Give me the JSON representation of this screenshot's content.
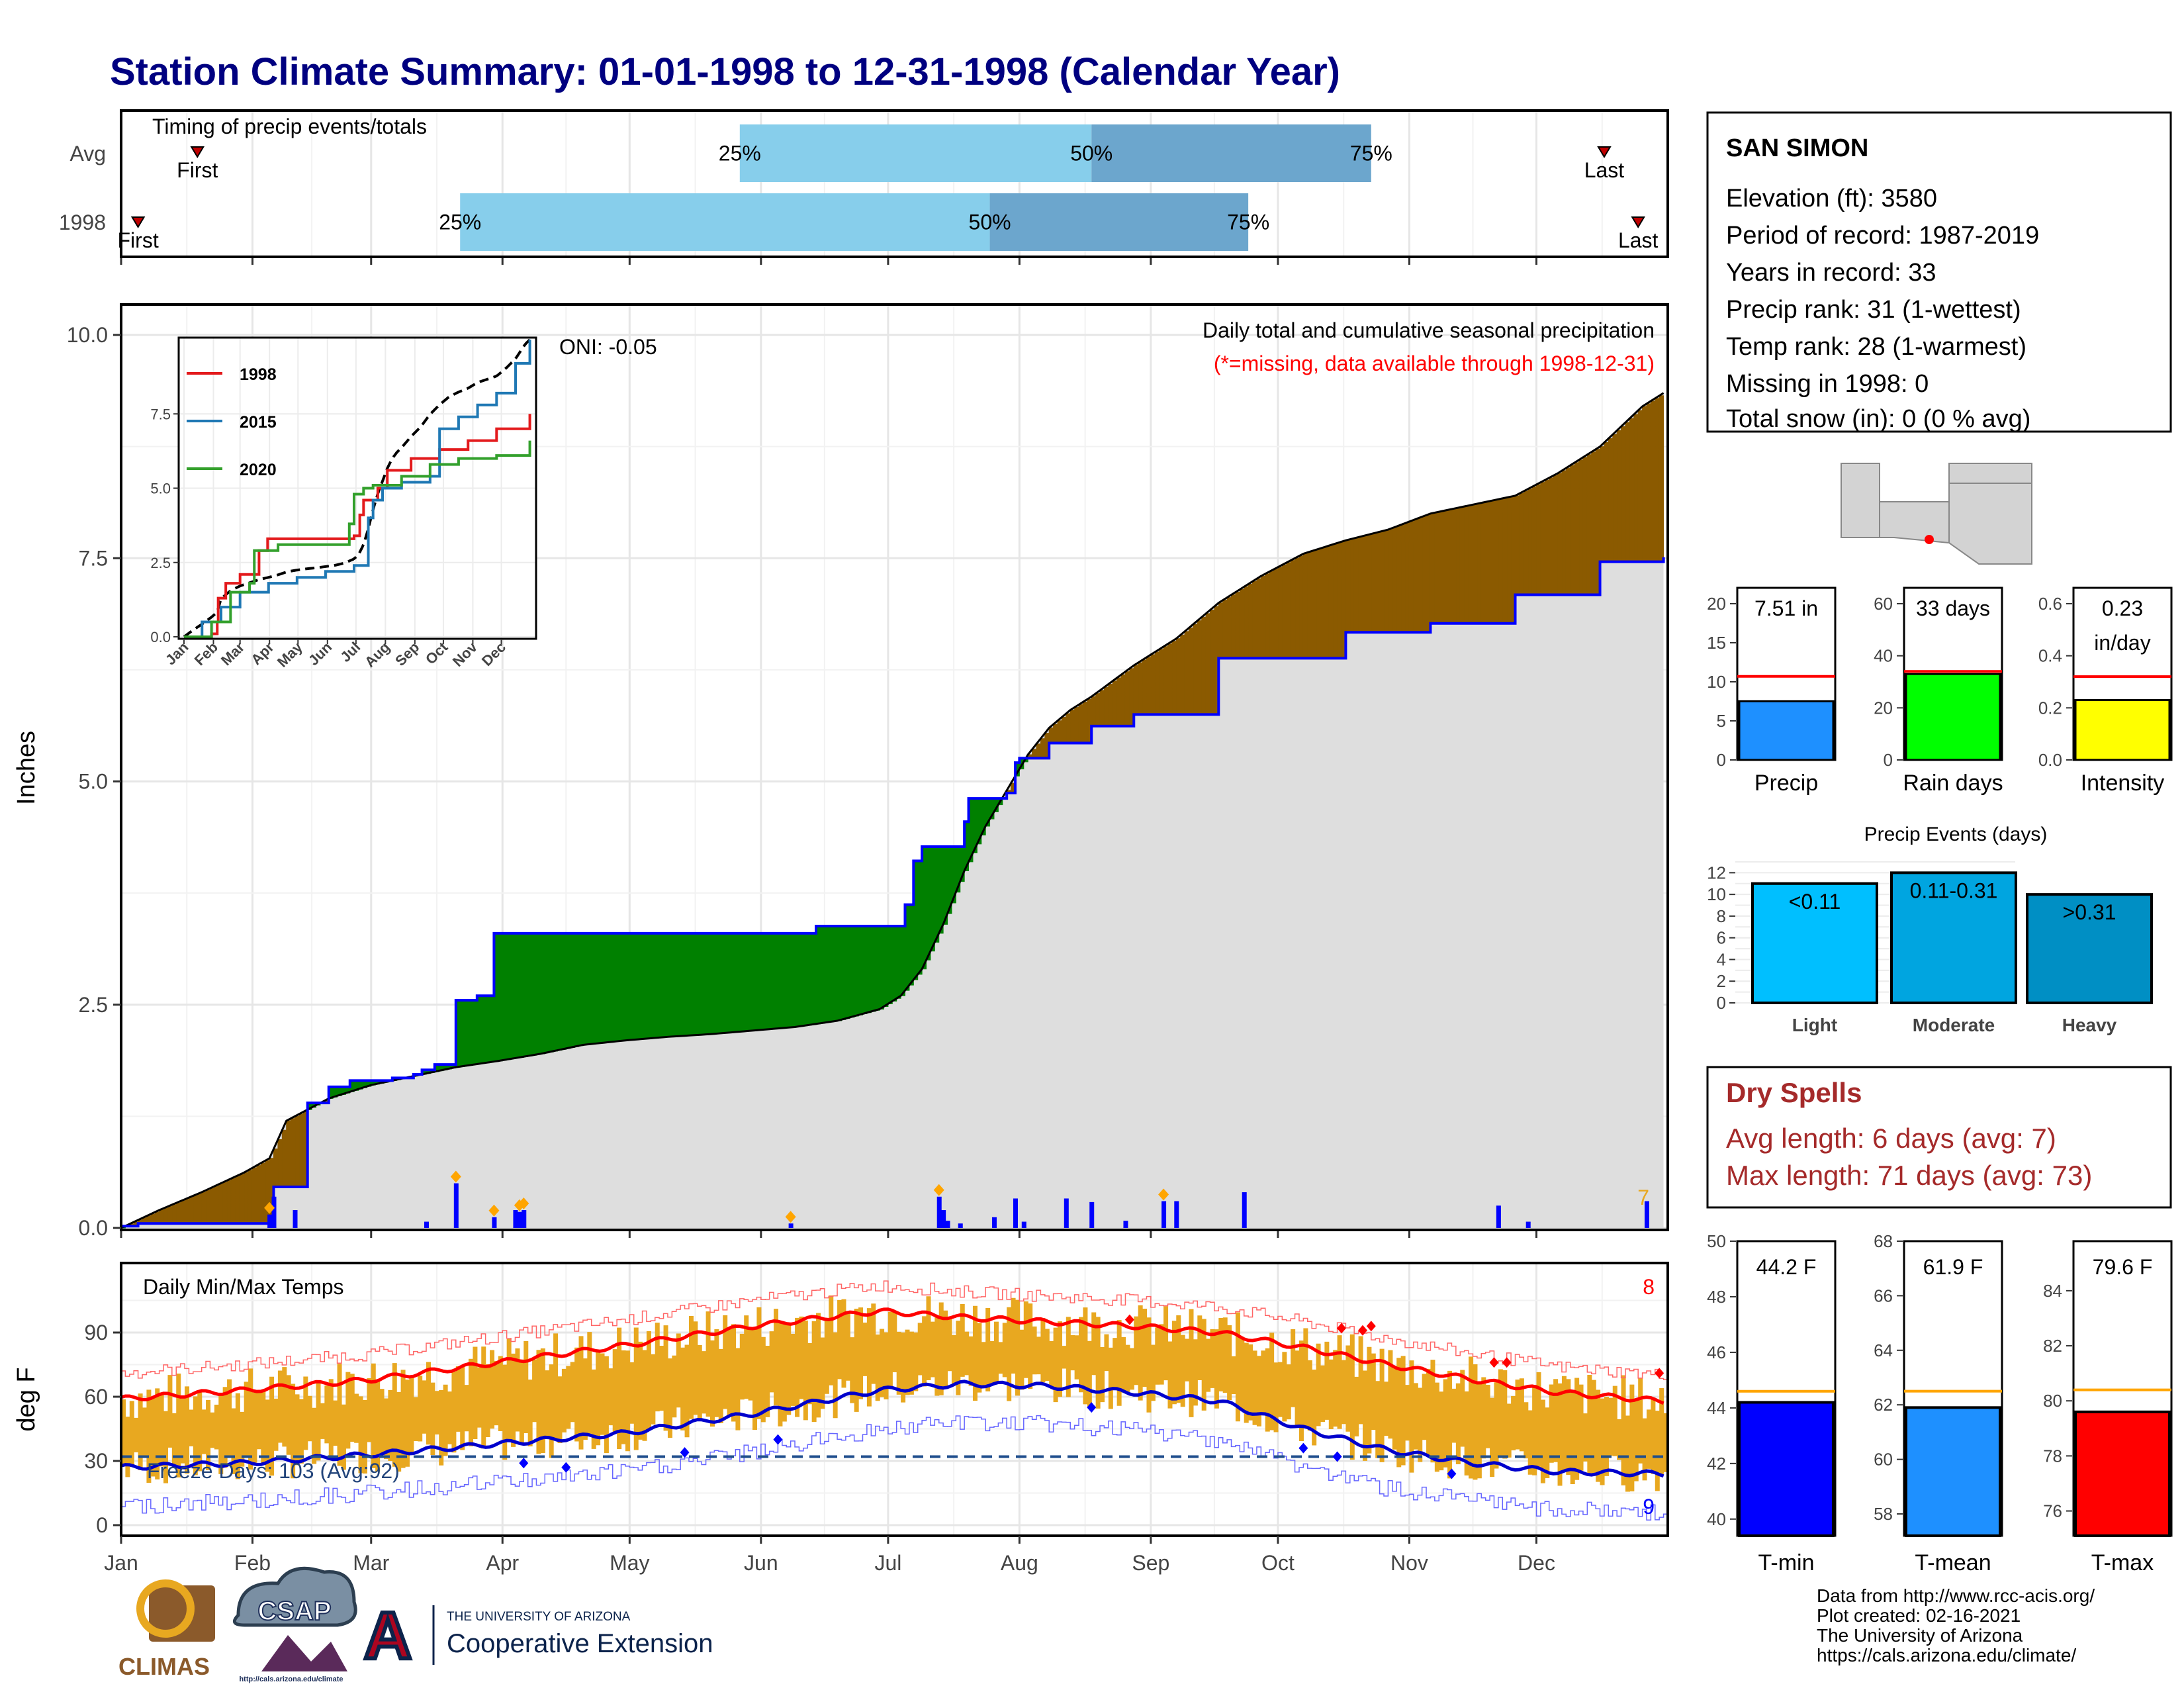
{
  "title": "Station Climate Summary: 01-01-1998 to 12-31-1998 (Calendar Year)",
  "months": [
    "Jan",
    "Feb",
    "Mar",
    "Apr",
    "May",
    "Jun",
    "Jul",
    "Aug",
    "Sep",
    "Oct",
    "Nov",
    "Dec"
  ],
  "timing": {
    "title": "Timing of precip events/totals",
    "avg_label": "Avg",
    "year_label": "1998",
    "first_label": "First",
    "last_label": "Last",
    "pct_labels": [
      "25%",
      "50%",
      "75%"
    ]
  },
  "precip_panel": {
    "ylabel": "Inches",
    "annotation": "Daily total and cumulative seasonal precipitation",
    "missing_note": "(*=missing, data available through 1998-12-31)",
    "oni": "ONI: -0.05",
    "corner_count": "7",
    "inset_legend": [
      "1998",
      "2015",
      "2020"
    ]
  },
  "temp_panel": {
    "ylabel": "deg F",
    "title": "Daily Min/Max Temps",
    "freeze": "Freeze Days: 103 (Avg:92)",
    "top_count": "8",
    "bottom_count": "9"
  },
  "station": {
    "name": "SAN SIMON",
    "lines": [
      "Elevation (ft): 3580",
      "Period of record: 1987-2019",
      "Years in record: 33",
      "Precip rank: 31 (1-wettest)",
      "Temp rank: 28 (1-warmest)",
      "Missing in 1998: 0",
      "Total snow (in): 0 (0 % avg)"
    ]
  },
  "mini_bars": {
    "precip": {
      "label": "Precip",
      "value_text": "7.51 in",
      "value": 7.51,
      "avg": 10.7,
      "ymax": 20,
      "ticks": [
        0,
        5,
        10,
        15,
        20
      ],
      "color": "#1e90ff"
    },
    "rain_days": {
      "label": "Rain days",
      "value_text": "33 days",
      "value": 33,
      "avg": 34,
      "ymax": 60,
      "ticks": [
        0,
        20,
        40,
        60
      ],
      "color": "#00ff00"
    },
    "intensity": {
      "label": "Intensity",
      "value_text": "0.23\nin/day",
      "value": 0.23,
      "avg": 0.32,
      "ymax": 0.6,
      "ticks": [
        0.0,
        0.2,
        0.4,
        0.6
      ],
      "color": "#ffff00"
    }
  },
  "precip_events": {
    "title": "Precip Events (days)",
    "categories": [
      "Light",
      "Moderate",
      "Heavy"
    ],
    "bin_labels": [
      "<0.11",
      "0.11-0.31",
      ">0.31"
    ],
    "values": [
      11,
      12,
      10
    ],
    "ticks": [
      0,
      2,
      4,
      6,
      8,
      10,
      12
    ],
    "colors": [
      "#00bfff",
      "#00a5e0",
      "#008fc4"
    ]
  },
  "dry_spells": {
    "title": "Dry Spells",
    "avg_line": "Avg length: 6 days (avg: 7)",
    "max_line": "Max length: 71 days (avg: 73)"
  },
  "temp_bars": {
    "tmin": {
      "label": "T-min",
      "value_text": "44.2 F",
      "value": 44.2,
      "avg": 44.6,
      "ylim": [
        39.4,
        50
      ],
      "ticks": [
        40,
        42,
        44,
        46,
        48,
        50
      ],
      "color": "#0000ff"
    },
    "tmean": {
      "label": "T-mean",
      "value_text": "61.9 F",
      "value": 61.9,
      "avg": 62.5,
      "ylim": [
        57.2,
        68
      ],
      "ticks": [
        58,
        60,
        62,
        64,
        66,
        68
      ],
      "color": "#1e90ff"
    },
    "tmax": {
      "label": "T-max",
      "value_text": "79.6 F",
      "value": 79.6,
      "avg": 80.4,
      "ylim": [
        75.1,
        85.8
      ],
      "ticks": [
        76,
        78,
        80,
        82,
        84
      ],
      "color": "#ff0000"
    }
  },
  "footer": {
    "credits": [
      "Data from http://www.rcc-acis.org/",
      "Plot created: 02-16-2021",
      "The University of Arizona",
      "https://cals.arizona.edu/climate/"
    ],
    "climas": "CLIMAS",
    "csap": "CSAP",
    "csap_url": "http://cals.arizona.edu/climate",
    "ua_line1": "THE UNIVERSITY OF ARIZONA",
    "ua_line2": "Cooperative Extension",
    "ua_letter": "A"
  },
  "colors": {
    "title": "#000080",
    "above_normal": "#8b5a00",
    "below_normal": "#008000",
    "normal_fill": "#dedede",
    "daily_bar": "#0000ff",
    "temp_range": "#e8a820",
    "dry_spell_text": "#a52a2a",
    "timing_light": "#87ceeb",
    "timing_dark": "#6ca6cd"
  },
  "chart_data": [
    {
      "type": "bar",
      "name": "timing",
      "categories": [
        "Avg",
        "1998"
      ],
      "series": [
        {
          "name": "25%",
          "x_day": [
            147,
            81
          ]
        },
        {
          "name": "50%",
          "x_day": [
            230,
            206
          ]
        },
        {
          "name": "75%",
          "x_day": [
            296,
            267
          ]
        }
      ],
      "first_day": [
        19,
        5
      ],
      "last_day": [
        351,
        359
      ]
    },
    {
      "type": "area",
      "name": "cumulative precipitation",
      "ylabel": "Inches",
      "ylim": [
        0,
        10
      ],
      "yticks": [
        0,
        2.5,
        5.0,
        7.5,
        10.0
      ],
      "x_unit": "day of year",
      "series": [
        {
          "name": "1998 cumulative",
          "x": [
            1,
            5,
            10,
            15,
            20,
            25,
            30,
            36,
            37,
            45,
            50,
            55,
            60,
            65,
            70,
            72,
            73,
            75,
            80,
            85,
            88,
            89,
            95,
            100,
            105,
            110,
            115,
            120,
            125,
            130,
            135,
            140,
            145,
            150,
            155,
            160,
            165,
            170,
            180,
            185,
            186,
            187,
            188,
            190,
            195,
            200,
            201,
            205,
            210,
            212,
            213,
            215,
            220,
            230,
            240,
            250,
            260,
            270,
            280,
            290,
            300,
            310,
            320,
            330,
            340,
            350,
            358,
            365
          ],
          "y": [
            0.02,
            0.05,
            0.05,
            0.05,
            0.05,
            0.05,
            0.05,
            0.08,
            0.46,
            1.4,
            1.58,
            1.65,
            1.65,
            1.68,
            1.72,
            1.77,
            1.77,
            1.83,
            2.55,
            2.6,
            2.6,
            3.3,
            3.3,
            3.3,
            3.3,
            3.3,
            3.3,
            3.3,
            3.3,
            3.3,
            3.3,
            3.3,
            3.3,
            3.3,
            3.3,
            3.3,
            3.38,
            3.38,
            3.38,
            3.38,
            3.62,
            3.62,
            4.11,
            4.27,
            4.27,
            4.55,
            4.81,
            4.81,
            4.87,
            5.21,
            5.26,
            5.26,
            5.43,
            5.62,
            5.75,
            5.75,
            6.38,
            6.38,
            6.38,
            6.67,
            6.67,
            6.77,
            6.77,
            7.09,
            7.09,
            7.46,
            7.46,
            7.51
          ]
        },
        {
          "name": "normal cumulative",
          "x": [
            1,
            10,
            20,
            30,
            36,
            40,
            50,
            60,
            70,
            80,
            90,
            100,
            110,
            120,
            130,
            140,
            150,
            160,
            170,
            180,
            185,
            190,
            195,
            200,
            205,
            210,
            215,
            220,
            225,
            230,
            240,
            250,
            260,
            270,
            280,
            290,
            300,
            310,
            320,
            330,
            340,
            350,
            360,
            365
          ],
          "y": [
            0.0,
            0.2,
            0.4,
            0.62,
            0.78,
            1.2,
            1.45,
            1.6,
            1.7,
            1.8,
            1.87,
            1.95,
            2.05,
            2.1,
            2.14,
            2.17,
            2.21,
            2.25,
            2.32,
            2.45,
            2.6,
            2.9,
            3.4,
            4.0,
            4.5,
            4.9,
            5.3,
            5.6,
            5.8,
            5.95,
            6.3,
            6.6,
            7.0,
            7.3,
            7.55,
            7.7,
            7.82,
            8.0,
            8.1,
            8.2,
            8.45,
            8.75,
            9.2,
            9.35
          ]
        }
      ],
      "daily_bars": {
        "x": [
          36,
          37,
          42,
          73,
          80,
          89,
          94,
          95,
          96,
          159,
          194,
          195,
          196,
          199,
          207,
          212,
          214,
          224,
          230,
          238,
          247,
          250,
          266,
          326,
          333,
          361
        ],
        "y": [
          0.15,
          0.35,
          0.2,
          0.07,
          0.5,
          0.12,
          0.2,
          0.18,
          0.2,
          0.05,
          0.35,
          0.2,
          0.08,
          0.05,
          0.12,
          0.33,
          0.07,
          0.33,
          0.29,
          0.08,
          0.3,
          0.3,
          0.4,
          0.25,
          0.07,
          0.3
        ]
      }
    },
    {
      "type": "line",
      "name": "inset cumulative comparison",
      "ylim": [
        0,
        10
      ],
      "yticks": [
        0.0,
        2.5,
        5.0,
        7.5
      ],
      "series": [
        {
          "name": "1998",
          "color": "#e31a1c"
        },
        {
          "name": "2015",
          "color": "#1f78b4"
        },
        {
          "name": "2020",
          "color": "#33a02c"
        }
      ]
    },
    {
      "type": "line",
      "name": "daily temperatures",
      "ylabel": "deg F",
      "ylim": [
        -5,
        115
      ],
      "yticks": [
        0,
        30,
        60,
        90
      ],
      "freeze_line": 32,
      "normal_max": {
        "x": [
          1,
          30,
          60,
          90,
          120,
          150,
          180,
          200,
          220,
          240,
          260,
          280,
          300,
          320,
          340,
          365
        ],
        "y": [
          59,
          63,
          68,
          76,
          84,
          93,
          100,
          97,
          95,
          93,
          90,
          83,
          75,
          68,
          62,
          58
        ]
      },
      "normal_min": {
        "x": [
          1,
          30,
          60,
          90,
          120,
          150,
          180,
          200,
          220,
          240,
          260,
          280,
          300,
          320,
          340,
          365
        ],
        "y": [
          27,
          29,
          33,
          38,
          43,
          52,
          63,
          66,
          65,
          62,
          58,
          45,
          35,
          29,
          25,
          24
        ]
      }
    },
    {
      "type": "bar",
      "name": "precip events",
      "categories": [
        "Light",
        "Moderate",
        "Heavy"
      ],
      "values": [
        11,
        12,
        10
      ]
    }
  ]
}
